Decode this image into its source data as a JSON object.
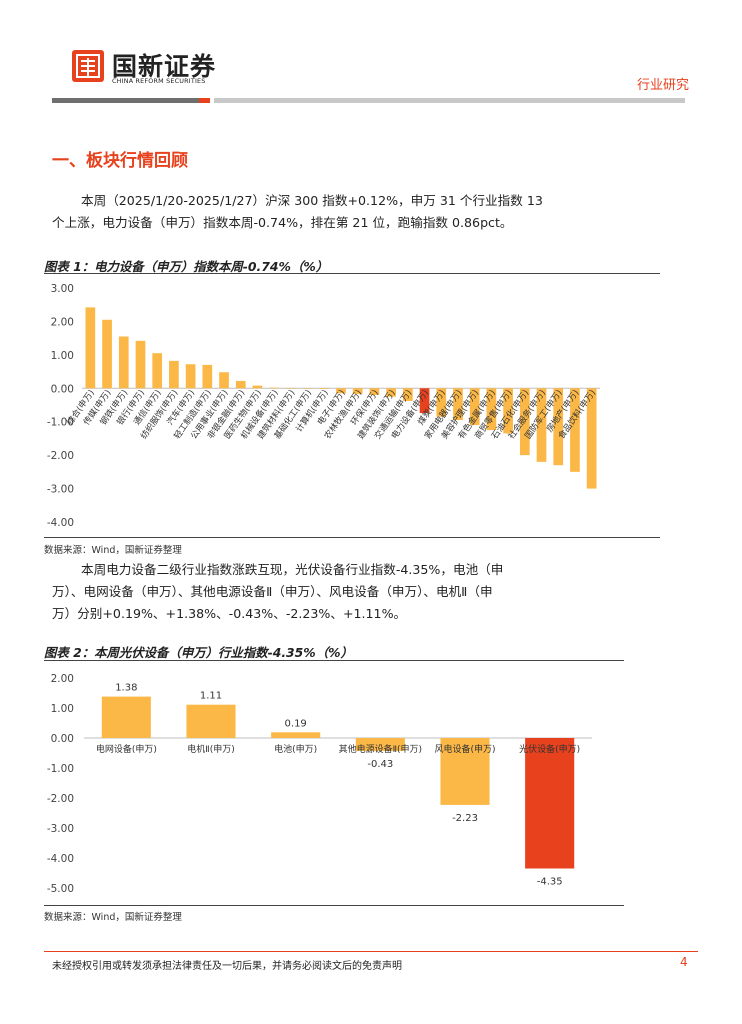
{
  "header": {
    "logo_cn": "国新证券",
    "logo_en": "CHINA REFORM SECURITIES",
    "right_label": "行业研究"
  },
  "section": {
    "title": "一、板块行情回顾"
  },
  "paragraph1": {
    "line1": "本周（2025/1/20-2025/1/27）沪深 300 指数+0.12%，申万 31 个行业指数 13",
    "line2": "个上涨，电力设备（申万）指数本周-0.74%，排在第 21 位，跑输指数 0.86pct。"
  },
  "figure1": {
    "title": "图表 1：电力设备（申万）指数本周-0.74%（%）",
    "source": "数据来源：Wind，国新证券整理"
  },
  "paragraph2": {
    "line1": "本周电力设备二级行业指数涨跌互现，光伏设备行业指数-4.35%，电池（申",
    "line2": "万）、电网设备（申万）、其他电源设备Ⅱ（申万）、风电设备（申万）、电机Ⅱ（申",
    "line3": "万）分别+0.19%、+1.38%、-0.43%、-2.23%、+1.11%。"
  },
  "figure2": {
    "title": "图表 2：本周光伏设备（申万）行业指数-4.35%（%）",
    "source": "数据来源：Wind，国新证券整理"
  },
  "footer": {
    "disclaimer": "未经授权引用或转发须承担法律责任及一切后果，并请务必阅读文后的免责声明",
    "page": "4"
  },
  "colors": {
    "accent": "#e8411d",
    "bar": "#fbb847",
    "highlight": "#e8411d"
  },
  "chart_data": [
    {
      "type": "bar",
      "title": "",
      "categories": [
        "综合(申万)",
        "传媒(申万)",
        "钢铁(申万)",
        "银行(申万)",
        "通信(申万)",
        "纺织服饰(申万)",
        "汽车(申万)",
        "轻工制造(申万)",
        "公用事业(申万)",
        "非银金融(申万)",
        "医药生物(申万)",
        "机械设备(申万)",
        "建筑材料(申万)",
        "基础化工(申万)",
        "计算机(申万)",
        "电子(申万)",
        "农林牧渔(申万)",
        "环保(申万)",
        "建筑装饰(申万)",
        "交通运输(申万)",
        "电力设备(申万)",
        "煤炭(申万)",
        "家用电器(申万)",
        "美容护理(申万)",
        "有色金属(申万)",
        "商贸零售(申万)",
        "石油石化(申万)",
        "社会服务(申万)",
        "国防军工(申万)",
        "房地产(申万)",
        "食品饮料(申万)"
      ],
      "values": [
        2.42,
        2.05,
        1.55,
        1.42,
        1.05,
        0.82,
        0.72,
        0.7,
        0.48,
        0.22,
        0.08,
        0.02,
        0.0,
        -0.01,
        -0.02,
        -0.15,
        -0.17,
        -0.2,
        -0.25,
        -0.38,
        -0.74,
        -0.85,
        -0.95,
        -1.1,
        -1.25,
        -1.35,
        -2.0,
        -2.2,
        -2.3,
        -2.5,
        -3.0
      ],
      "highlight_index": 20,
      "ylim": [
        -4,
        3
      ],
      "yticks": [
        "3.00",
        "2.00",
        "1.00",
        "0.00",
        "-1.00",
        "-2.00",
        "-3.00",
        "-4.00"
      ],
      "grid": false,
      "xlabel": "",
      "ylabel": ""
    },
    {
      "type": "bar",
      "title": "",
      "categories": [
        "电网设备(申万)",
        "电机Ⅱ(申万)",
        "电池(申万)",
        "其他电源设备Ⅱ(申万)",
        "风电设备(申万)",
        "光伏设备(申万)"
      ],
      "values": [
        1.38,
        1.11,
        0.19,
        -0.43,
        -2.23,
        -4.35
      ],
      "labels": [
        "1.38",
        "1.11",
        "0.19",
        "-0.43",
        "-2.23",
        "-4.35"
      ],
      "highlight_index": 5,
      "ylim": [
        -5,
        2
      ],
      "yticks": [
        "2.00",
        "1.00",
        "0.00",
        "-1.00",
        "-2.00",
        "-3.00",
        "-4.00",
        "-5.00"
      ],
      "grid": false,
      "xlabel": "",
      "ylabel": ""
    }
  ]
}
